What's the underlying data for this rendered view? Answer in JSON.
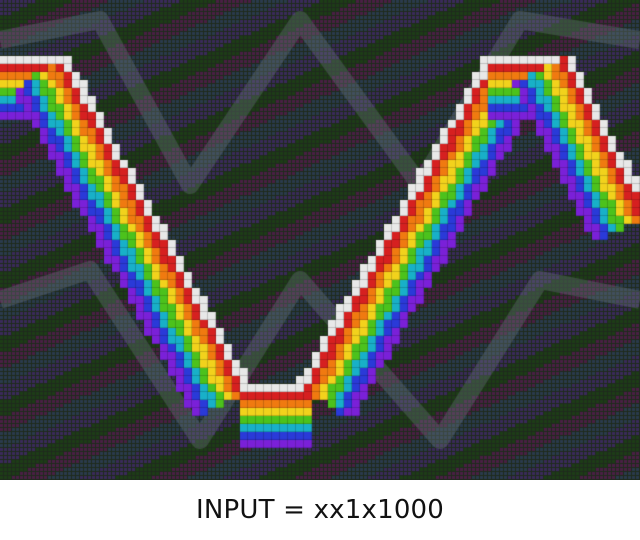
{
  "caption": "INPUT = xx1x1000",
  "palette": {
    "background": "#1e2a1c",
    "stripe_colors": [
      "#3a2a5a",
      "#1d3d16",
      "#4a1f44",
      "#2a3a4c"
    ],
    "rainbow": [
      "#e8e8e8",
      "#d62020",
      "#f07a10",
      "#f2d21c",
      "#4cc21c",
      "#18b0c8",
      "#2a3ad8",
      "#7a20d8"
    ]
  }
}
